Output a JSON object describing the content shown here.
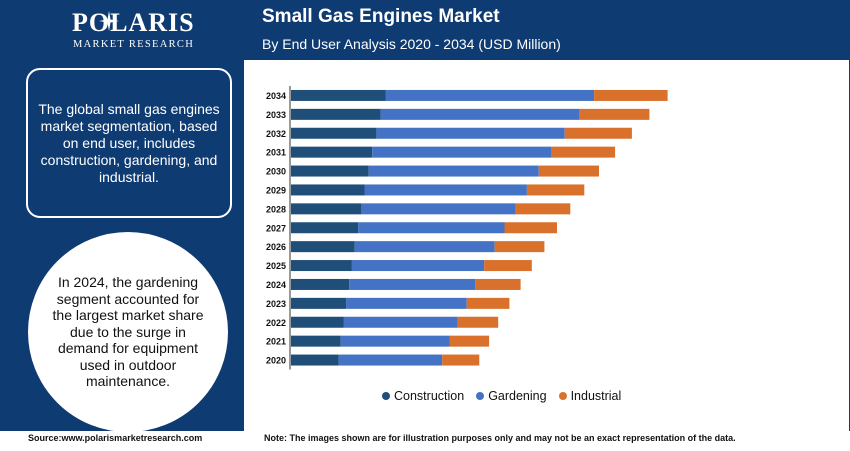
{
  "logo": {
    "name": "POLARIS",
    "sub": "MARKET RESEARCH"
  },
  "header": {
    "title": "Small Gas Engines Market",
    "subtitle": "By End User Analysis 2020 - 2034 (USD Million)"
  },
  "panel": {
    "box_text": "The global small gas engines market segmentation, based on end user, includes construction, gardening, and industrial.",
    "circle_text": "In 2024, the gardening segment accounted for the largest market share due to the surge in demand for equipment used in outdoor maintenance."
  },
  "footer": {
    "source": "Source:www.polarismarketresearch.com",
    "note": "Note: The images shown are for illustration purposes only and may not be an exact representation of the data."
  },
  "colors": {
    "construction": "#1f4e79",
    "gardening": "#4472c4",
    "industrial": "#d9702b",
    "header": "#0f3b73"
  },
  "chart_data": {
    "type": "bar",
    "orientation": "horizontal",
    "stacked": true,
    "categories": [
      "2034",
      "2033",
      "2032",
      "2031",
      "2030",
      "2029",
      "2028",
      "2027",
      "2026",
      "2025",
      "2024",
      "2023",
      "2022",
      "2021",
      "2020"
    ],
    "series": [
      {
        "name": "Construction",
        "values": [
          135,
          128,
          122,
          116,
          111,
          105,
          100,
          96,
          91,
          87,
          83,
          79,
          75,
          71,
          68
        ]
      },
      {
        "name": "Gardening",
        "values": [
          298,
          284,
          269,
          256,
          243,
          232,
          221,
          209,
          200,
          189,
          180,
          172,
          163,
          156,
          148
        ]
      },
      {
        "name": "Industrial",
        "values": [
          105,
          100,
          96,
          91,
          86,
          82,
          78,
          75,
          71,
          68,
          65,
          61,
          58,
          56,
          53
        ]
      }
    ],
    "grid": false,
    "legend": "bottom"
  }
}
